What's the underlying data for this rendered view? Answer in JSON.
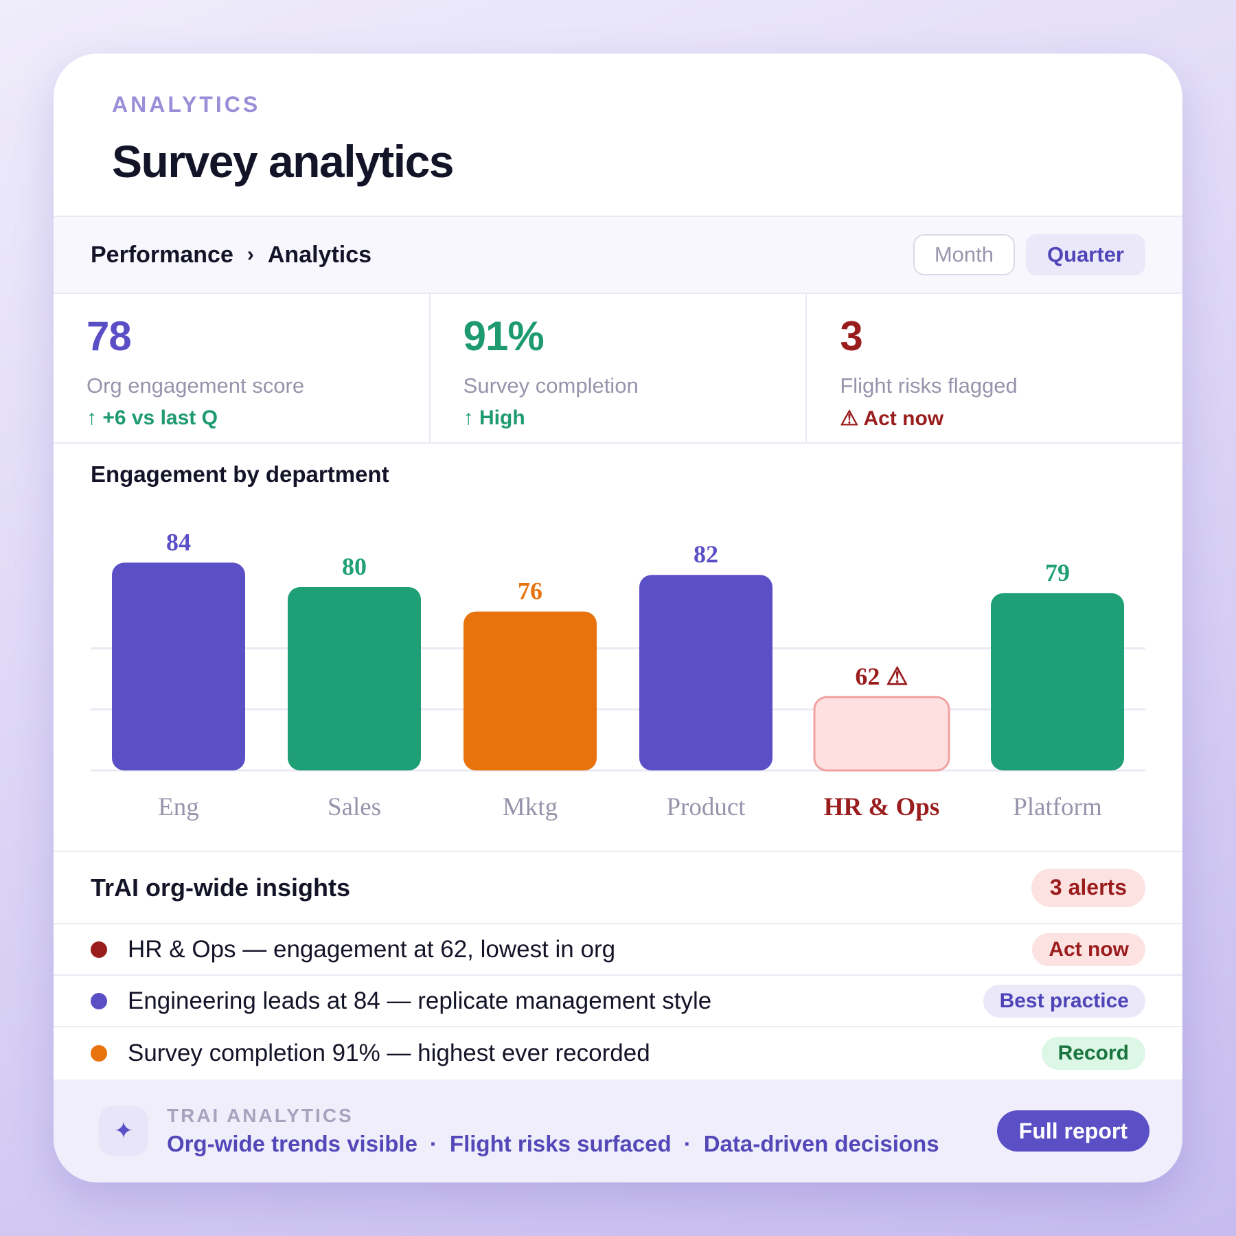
{
  "header": {
    "eyebrow": "ANALYTICS",
    "title": "Survey analytics"
  },
  "toolbar": {
    "breadcrumb": [
      "Performance",
      "Analytics"
    ],
    "breadcrumb_separator": "›",
    "periods": [
      "Month",
      "Quarter"
    ],
    "selected_period": "Quarter"
  },
  "kpis": [
    {
      "value": "78",
      "label": "Org engagement score",
      "delta": "↑ +6 vs last Q",
      "value_color": "#5b4fc6",
      "delta_color": "#1e9a6f"
    },
    {
      "value": "91%",
      "label": "Survey completion",
      "delta": "↑ High",
      "value_color": "#1e9a6f",
      "delta_color": "#1e9a6f"
    },
    {
      "value": "3",
      "label": "Flight risks flagged",
      "delta": "⚠ Act now",
      "value_color": "#9a1d1d",
      "delta_color": "#9a1d1d"
    }
  ],
  "chart_data": {
    "type": "bar",
    "title": "Engagement by department",
    "categories": [
      "Eng",
      "Sales",
      "Mktg",
      "Product",
      "HR & Ops",
      "Platform"
    ],
    "values": [
      84,
      80,
      76,
      82,
      62,
      79
    ],
    "value_labels": [
      "84",
      "80",
      "76",
      "82",
      "62 ⚠",
      "79"
    ],
    "colors": [
      "#5b4fc6",
      "#1e9f75",
      "#e8720c",
      "#5b4fc6",
      "#fde0e0",
      "#1e9f75"
    ],
    "label_colors": [
      "#5b4fc6",
      "#1e9f75",
      "#e8720c",
      "#5b4fc6",
      "#9a1d1d",
      "#1e9f75"
    ],
    "highlight_category": "HR & Ops",
    "highlight_border": "#f2a1a1",
    "ylim": [
      50,
      90
    ],
    "gridlines": [
      50,
      60,
      70
    ],
    "grid": true
  },
  "insights": {
    "title": "TrAI org-wide insights",
    "badge": "3 alerts",
    "items": [
      {
        "text": "HR & Ops — engagement at 62, lowest in org",
        "tag": "Act now",
        "dot_color": "#9a1d1d",
        "tag_bg": "#fde2e2",
        "tag_color": "#9a1d1d"
      },
      {
        "text": "Engineering leads at 84 — replicate management style",
        "tag": "Best practice",
        "dot_color": "#5b4fc6",
        "tag_bg": "#ebe8fa",
        "tag_color": "#4f44b8"
      },
      {
        "text": "Survey completion 91% — highest ever recorded",
        "tag": "Record",
        "dot_color": "#e8720c",
        "tag_bg": "#dcf7e6",
        "tag_color": "#19743f"
      }
    ]
  },
  "footer": {
    "icon": "sparkle-icon",
    "label": "TRAI ANALYTICS",
    "points": [
      "Org-wide trends visible",
      "Flight risks surfaced",
      "Data-driven decisions"
    ],
    "separator": "·",
    "button": "Full report"
  }
}
